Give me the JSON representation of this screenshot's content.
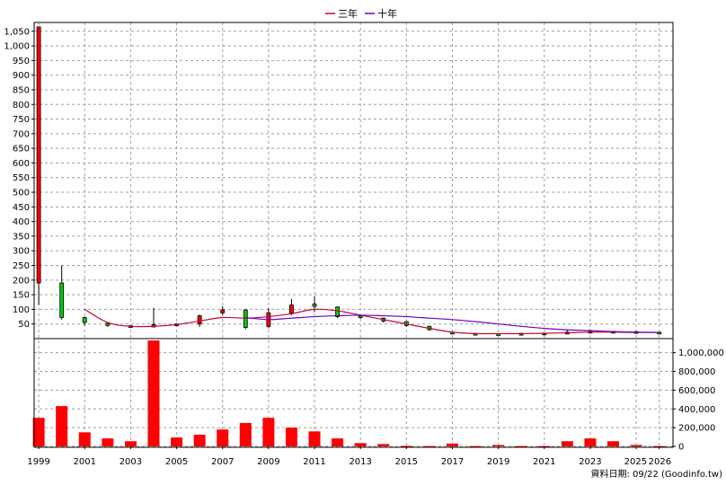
{
  "chart_data": [
    {
      "type": "candlestick",
      "ylim": [
        0,
        1080
      ],
      "y_ticks": [
        50,
        100,
        150,
        200,
        250,
        300,
        350,
        400,
        450,
        500,
        550,
        600,
        650,
        700,
        750,
        800,
        850,
        900,
        950,
        1000,
        1050
      ],
      "y_tick_labels": [
        "50",
        "100",
        "150",
        "200",
        "250",
        "300",
        "350",
        "400",
        "450",
        "500",
        "550",
        "600",
        "650",
        "700",
        "750",
        "800",
        "850",
        "900",
        "950",
        "1,000",
        "1,050"
      ],
      "legend": [
        {
          "name": "三年",
          "color": "#cc0033"
        },
        {
          "name": "十年",
          "color": "#6600cc"
        }
      ],
      "candles": [
        {
          "year": 1999,
          "open": 190,
          "close": 1065,
          "high": 1065,
          "low": 115
        },
        {
          "year": 2000,
          "open": 190,
          "close": 72,
          "high": 250,
          "low": 65
        },
        {
          "year": 2001,
          "open": 72,
          "close": 55,
          "high": 75,
          "low": 45
        },
        {
          "year": 2002,
          "open": 52,
          "close": 45,
          "high": 55,
          "low": 40
        },
        {
          "year": 2003,
          "open": 44,
          "close": 40,
          "high": 46,
          "low": 37
        },
        {
          "year": 2004,
          "open": 40,
          "close": 48,
          "high": 105,
          "low": 38
        },
        {
          "year": 2005,
          "open": 48,
          "close": 50,
          "high": 52,
          "low": 45
        },
        {
          "year": 2006,
          "open": 50,
          "close": 78,
          "high": 82,
          "low": 40
        },
        {
          "year": 2007,
          "open": 88,
          "close": 98,
          "high": 110,
          "low": 80
        },
        {
          "year": 2008,
          "open": 98,
          "close": 38,
          "high": 100,
          "low": 32
        },
        {
          "year": 2009,
          "open": 42,
          "close": 88,
          "high": 105,
          "low": 35
        },
        {
          "year": 2010,
          "open": 88,
          "close": 115,
          "high": 135,
          "low": 80
        },
        {
          "year": 2011,
          "open": 118,
          "close": 110,
          "high": 145,
          "low": 90
        },
        {
          "year": 2012,
          "open": 108,
          "close": 75,
          "high": 110,
          "low": 70
        },
        {
          "year": 2013,
          "open": 78,
          "close": 72,
          "high": 80,
          "low": 68
        },
        {
          "year": 2014,
          "open": 70,
          "close": 60,
          "high": 72,
          "low": 55
        },
        {
          "year": 2015,
          "open": 58,
          "close": 45,
          "high": 60,
          "low": 40
        },
        {
          "year": 2016,
          "open": 42,
          "close": 30,
          "high": 44,
          "low": 28
        },
        {
          "year": 2017,
          "open": 22,
          "close": 18,
          "high": 25,
          "low": 15
        },
        {
          "year": 2018,
          "open": 18,
          "close": 17,
          "high": 19,
          "low": 15
        },
        {
          "year": 2019,
          "open": 17,
          "close": 16,
          "high": 18,
          "low": 15
        },
        {
          "year": 2020,
          "open": 16,
          "close": 18,
          "high": 19,
          "low": 14
        },
        {
          "year": 2021,
          "open": 18,
          "close": 19,
          "high": 20,
          "low": 17
        },
        {
          "year": 2022,
          "open": 19,
          "close": 22,
          "high": 28,
          "low": 17
        },
        {
          "year": 2023,
          "open": 22,
          "close": 25,
          "high": 32,
          "low": 20
        },
        {
          "year": 2024,
          "open": 25,
          "close": 24,
          "high": 26,
          "low": 22
        },
        {
          "year": 2025,
          "open": 24,
          "close": 22,
          "high": 25,
          "low": 21
        },
        {
          "year": 2026,
          "open": 22,
          "close": 21,
          "high": 23,
          "low": 20
        }
      ],
      "series": [
        {
          "name": "三年",
          "points": [
            [
              2001,
              100
            ],
            [
              2002,
              55
            ],
            [
              2003,
              42
            ],
            [
              2004,
              42
            ],
            [
              2005,
              48
            ],
            [
              2006,
              60
            ],
            [
              2007,
              72
            ],
            [
              2008,
              70
            ],
            [
              2009,
              75
            ],
            [
              2010,
              85
            ],
            [
              2011,
              100
            ],
            [
              2012,
              95
            ],
            [
              2013,
              80
            ],
            [
              2014,
              65
            ],
            [
              2015,
              50
            ],
            [
              2016,
              35
            ],
            [
              2017,
              22
            ],
            [
              2018,
              17
            ],
            [
              2019,
              17
            ],
            [
              2020,
              17
            ],
            [
              2021,
              18
            ],
            [
              2022,
              20
            ],
            [
              2023,
              22
            ],
            [
              2024,
              22
            ],
            [
              2025,
              21
            ],
            [
              2026,
              21
            ]
          ]
        },
        {
          "name": "十年",
          "points": [
            [
              2008,
              72
            ],
            [
              2009,
              65
            ],
            [
              2010,
              70
            ],
            [
              2011,
              75
            ],
            [
              2012,
              78
            ],
            [
              2013,
              80
            ],
            [
              2014,
              78
            ],
            [
              2015,
              75
            ],
            [
              2016,
              70
            ],
            [
              2017,
              65
            ],
            [
              2018,
              58
            ],
            [
              2019,
              50
            ],
            [
              2020,
              42
            ],
            [
              2021,
              35
            ],
            [
              2022,
              30
            ],
            [
              2023,
              27
            ],
            [
              2024,
              24
            ],
            [
              2025,
              22
            ],
            [
              2026,
              21
            ]
          ]
        }
      ]
    },
    {
      "type": "bar",
      "ylim": [
        0,
        1150000
      ],
      "y_ticks": [
        0,
        200000,
        400000,
        600000,
        800000,
        1000000
      ],
      "y_tick_labels": [
        "0",
        "200,000",
        "400,000",
        "600,000",
        "800,000",
        "1,000,000"
      ],
      "categories": [
        1999,
        2000,
        2001,
        2002,
        2003,
        2004,
        2005,
        2006,
        2007,
        2008,
        2009,
        2010,
        2011,
        2012,
        2013,
        2014,
        2015,
        2016,
        2017,
        2018,
        2019,
        2020,
        2021,
        2022,
        2023,
        2024,
        2025,
        2026
      ],
      "values": [
        305000,
        430000,
        150000,
        85000,
        55000,
        1130000,
        95000,
        125000,
        180000,
        250000,
        305000,
        200000,
        160000,
        85000,
        35000,
        25000,
        5000,
        3000,
        30000,
        3000,
        15000,
        3000,
        3000,
        55000,
        85000,
        55000,
        15000,
        3000
      ],
      "color": "#ff0000"
    }
  ],
  "x_axis": {
    "range": [
      1998.8,
      2026.6
    ],
    "tick_labels": [
      "1999",
      "2001",
      "2003",
      "2005",
      "2007",
      "2009",
      "2011",
      "2013",
      "2015",
      "2017",
      "2019",
      "2021",
      "2023",
      "2025",
      "2026"
    ]
  },
  "footer": {
    "text": "資料日期: 09/22 (Goodinfo.tw)"
  }
}
